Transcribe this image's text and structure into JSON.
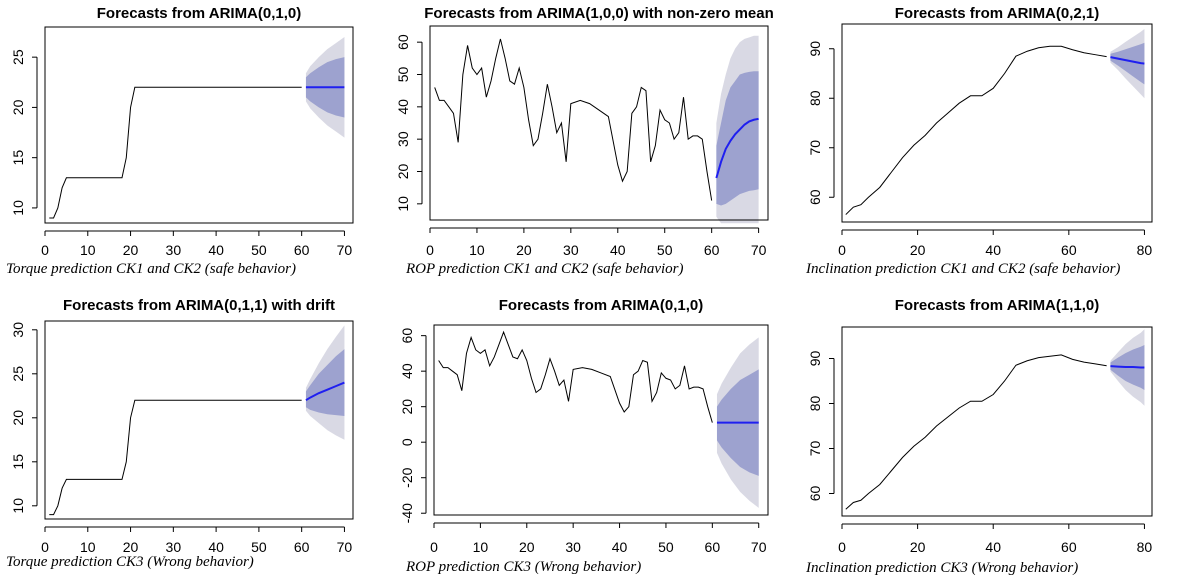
{
  "chart_data": [
    {
      "type": "line",
      "title": "Forecasts from ARIMA(0,1,0)",
      "caption": "Torque prediction CK1 and CK2 (safe behavior)",
      "xlim": [
        0,
        72
      ],
      "ylim": [
        8.5,
        28
      ],
      "xticks": [
        0,
        10,
        20,
        30,
        40,
        50,
        60,
        70
      ],
      "yticks": [
        10,
        15,
        20,
        25
      ],
      "series": [
        {
          "role": "observed",
          "x": [
            1,
            2,
            3,
            4,
            5,
            10,
            15,
            18,
            19,
            20,
            21,
            25,
            30,
            40,
            50,
            60
          ],
          "y": [
            9,
            9,
            10,
            12,
            13,
            13,
            13,
            13,
            15,
            20,
            22,
            22,
            22,
            22,
            22,
            22
          ]
        }
      ],
      "forecast": {
        "x": [
          61,
          62,
          64,
          66,
          68,
          70
        ],
        "mean": [
          22,
          22,
          22,
          22,
          22,
          22
        ],
        "lo80": [
          21,
          20.6,
          20,
          19.5,
          19.2,
          19
        ],
        "hi80": [
          23,
          23.4,
          24,
          24.5,
          24.8,
          25
        ],
        "lo95": [
          20.6,
          19.9,
          19,
          18.2,
          17.6,
          17
        ],
        "hi95": [
          23.4,
          24.1,
          25,
          25.8,
          26.4,
          27
        ]
      }
    },
    {
      "type": "line",
      "title": "Forecasts from ARIMA(1,0,0) with non-zero mean",
      "caption": "ROP prediction CK1 and CK2 (safe behavior)",
      "xlim": [
        0,
        72
      ],
      "ylim": [
        5,
        65
      ],
      "xticks": [
        0,
        10,
        20,
        30,
        40,
        50,
        60,
        70
      ],
      "yticks": [
        10,
        20,
        30,
        40,
        50,
        60
      ],
      "series": [
        {
          "role": "observed",
          "x": [
            1,
            2,
            3,
            4,
            5,
            6,
            7,
            8,
            9,
            10,
            11,
            12,
            13,
            14,
            15,
            16,
            17,
            18,
            19,
            20,
            21,
            22,
            23,
            24,
            25,
            26,
            27,
            28,
            29,
            30,
            32,
            34,
            36,
            38,
            40,
            41,
            42,
            43,
            44,
            45,
            46,
            47,
            48,
            49,
            50,
            51,
            52,
            53,
            54,
            55,
            56,
            57,
            58,
            59,
            60
          ],
          "y": [
            46,
            42,
            42,
            40,
            38,
            29,
            50,
            59,
            52,
            50,
            52,
            43,
            48,
            55,
            61,
            55,
            48,
            47,
            52,
            46,
            36,
            28,
            30,
            38,
            47,
            40,
            32,
            35,
            23,
            41,
            42,
            41,
            39,
            37,
            22,
            17,
            20,
            38,
            40,
            46,
            45,
            23,
            28,
            39,
            36,
            35,
            30,
            32,
            43,
            30,
            31,
            31,
            30,
            20,
            11
          ]
        }
      ],
      "forecast": {
        "x": [
          61,
          62,
          63,
          64,
          65,
          66,
          67,
          68,
          69,
          70
        ],
        "mean": [
          18,
          23,
          27,
          29.5,
          31.5,
          33,
          34.5,
          35.5,
          36,
          36.3
        ],
        "lo80": [
          10,
          9.5,
          10,
          11,
          12,
          13,
          13.5,
          14,
          14.2,
          14.5
        ],
        "hi80": [
          28,
          35,
          42,
          46,
          48,
          50,
          50.5,
          50.8,
          51,
          51
        ],
        "lo95": [
          6,
          4,
          4,
          4,
          4,
          4,
          4,
          4,
          4,
          4
        ],
        "hi95": [
          35,
          44,
          50,
          55,
          58,
          60,
          61,
          61.5,
          62,
          62
        ]
      }
    },
    {
      "type": "line",
      "title": "Forecasts from ARIMA(0,2,1)",
      "caption": "Inclination prediction CK1 and CK2 (safe behavior)",
      "xlim": [
        0,
        82
      ],
      "ylim": [
        55,
        95
      ],
      "xticks": [
        0,
        20,
        40,
        60,
        80
      ],
      "yticks": [
        60,
        70,
        80,
        90
      ],
      "series": [
        {
          "role": "observed",
          "x": [
            1,
            3,
            5,
            7,
            10,
            13,
            16,
            19,
            22,
            25,
            28,
            31,
            34,
            37,
            40,
            43,
            46,
            49,
            52,
            55,
            58,
            61,
            64,
            67,
            70
          ],
          "y": [
            56.5,
            58,
            58.5,
            60,
            62,
            65,
            68,
            70.5,
            72.5,
            75,
            77,
            79,
            80.5,
            80.5,
            82,
            85,
            88.5,
            89.5,
            90.2,
            90.5,
            90.5,
            89.8,
            89.2,
            88.8,
            88.4
          ]
        }
      ],
      "forecast": {
        "x": [
          71,
          73,
          75,
          77,
          79,
          80
        ],
        "mean": [
          88.3,
          88,
          87.7,
          87.4,
          87.1,
          87
        ],
        "lo80": [
          87.6,
          86.6,
          85.5,
          84.4,
          83.3,
          82.8
        ],
        "hi80": [
          89,
          89.4,
          89.9,
          90.4,
          90.9,
          91.2
        ],
        "lo95": [
          87.2,
          85.7,
          84,
          82.4,
          80.8,
          80
        ],
        "hi95": [
          89.4,
          90.3,
          91.4,
          92.4,
          93.4,
          94
        ]
      }
    },
    {
      "type": "line",
      "title": "Forecasts from ARIMA(0,1,1) with drift",
      "caption": "Torque prediction CK3 (Wrong behavior)",
      "xlim": [
        0,
        72
      ],
      "ylim": [
        8.5,
        31
      ],
      "xticks": [
        0,
        10,
        20,
        30,
        40,
        50,
        60,
        70
      ],
      "yticks": [
        10,
        15,
        20,
        25,
        30
      ],
      "series": [
        {
          "role": "observed",
          "x": [
            1,
            2,
            3,
            4,
            5,
            10,
            15,
            18,
            19,
            20,
            21,
            25,
            30,
            40,
            50,
            60
          ],
          "y": [
            9,
            9,
            10,
            12,
            13,
            13,
            13,
            13,
            15,
            20,
            22,
            22,
            22,
            22,
            22,
            22
          ]
        }
      ],
      "forecast": {
        "x": [
          61,
          62,
          64,
          66,
          68,
          70
        ],
        "mean": [
          22,
          22.3,
          22.8,
          23.2,
          23.6,
          24
        ],
        "lo80": [
          21.2,
          20.9,
          20.6,
          20.4,
          20.3,
          20.2
        ],
        "hi80": [
          23,
          23.7,
          25,
          26,
          27,
          27.8
        ],
        "lo95": [
          20.8,
          20.2,
          19.4,
          18.6,
          18,
          17.5
        ],
        "hi95": [
          23.4,
          24.4,
          26.2,
          27.8,
          29.2,
          30.5
        ]
      }
    },
    {
      "type": "line",
      "title": "Forecasts from ARIMA(0,1,0)",
      "caption": "ROP prediction CK3 (Wrong behavior)",
      "xlim": [
        0,
        72
      ],
      "ylim": [
        -41,
        66
      ],
      "xticks": [
        0,
        10,
        20,
        30,
        40,
        50,
        60,
        70
      ],
      "yticks": [
        -40,
        -20,
        0,
        20,
        40,
        60
      ],
      "series": [
        {
          "role": "observed",
          "x": [
            1,
            2,
            3,
            4,
            5,
            6,
            7,
            8,
            9,
            10,
            11,
            12,
            13,
            14,
            15,
            16,
            17,
            18,
            19,
            20,
            21,
            22,
            23,
            24,
            25,
            26,
            27,
            28,
            29,
            30,
            32,
            34,
            36,
            38,
            40,
            41,
            42,
            43,
            44,
            45,
            46,
            47,
            48,
            49,
            50,
            51,
            52,
            53,
            54,
            55,
            56,
            57,
            58,
            59,
            60
          ],
          "y": [
            46,
            42,
            42,
            40,
            38,
            29,
            50,
            59,
            52,
            50,
            52,
            43,
            48,
            55,
            62,
            55,
            48,
            47,
            52,
            46,
            36,
            28,
            30,
            38,
            47,
            40,
            32,
            35,
            23,
            41,
            42,
            41,
            39,
            37,
            22,
            17,
            20,
            38,
            40,
            46,
            45,
            23,
            28,
            39,
            36,
            35,
            30,
            32,
            43,
            30,
            31,
            31,
            30,
            20,
            11
          ]
        }
      ],
      "forecast": {
        "x": [
          61,
          62,
          64,
          66,
          68,
          70
        ],
        "mean": [
          11,
          11,
          11,
          11,
          11,
          11
        ],
        "lo80": [
          1,
          -3,
          -9,
          -14,
          -17,
          -19
        ],
        "hi80": [
          20,
          24,
          30,
          35,
          38,
          41
        ],
        "lo95": [
          -6,
          -12,
          -21,
          -28,
          -33,
          -37
        ],
        "hi95": [
          27,
          33,
          42,
          50,
          55,
          59
        ]
      }
    },
    {
      "type": "line",
      "title": "Forecasts from ARIMA(1,1,0)",
      "caption": "Inclination prediction CK3 (Wrong behavior)",
      "xlim": [
        0,
        82
      ],
      "ylim": [
        55,
        97
      ],
      "xticks": [
        0,
        20,
        40,
        60,
        80
      ],
      "yticks": [
        60,
        70,
        80,
        90
      ],
      "series": [
        {
          "role": "observed",
          "x": [
            1,
            3,
            5,
            7,
            10,
            13,
            16,
            19,
            22,
            25,
            28,
            31,
            34,
            37,
            40,
            43,
            46,
            49,
            52,
            55,
            58,
            61,
            64,
            67,
            70
          ],
          "y": [
            56.5,
            58,
            58.5,
            60,
            62,
            65,
            68,
            70.5,
            72.5,
            75,
            77,
            79,
            80.5,
            80.5,
            82,
            85,
            88.5,
            89.5,
            90.2,
            90.5,
            90.8,
            89.8,
            89.2,
            88.8,
            88.4
          ]
        }
      ],
      "forecast": {
        "x": [
          71,
          73,
          75,
          77,
          79,
          80
        ],
        "mean": [
          88.3,
          88.2,
          88.1,
          88.1,
          88,
          88
        ],
        "lo80": [
          87.5,
          86.2,
          85,
          84.2,
          83.5,
          83
        ],
        "hi80": [
          89.1,
          90.2,
          91.2,
          92,
          92.6,
          93
        ],
        "lo95": [
          87.1,
          85,
          83,
          81.5,
          80.3,
          79.5
        ],
        "hi95": [
          89.5,
          91.4,
          93.2,
          94.6,
          95.7,
          96.5
        ]
      }
    }
  ],
  "colors": {
    "observed": "#000000",
    "forecast_mean": "#1f1ff0",
    "band80": "#9da2cf",
    "band95": "#d9d9e4",
    "axis": "#000000"
  }
}
